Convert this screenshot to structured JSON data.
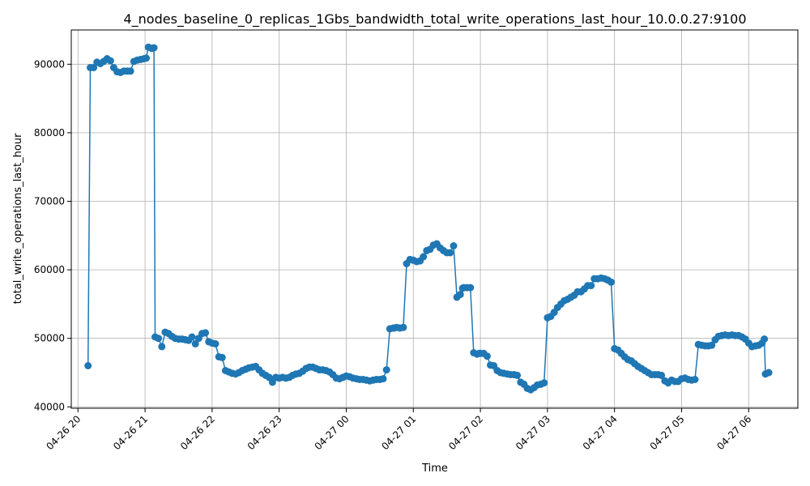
{
  "chart_data": {
    "type": "line",
    "title": "4_nodes_baseline_0_replicas_1Gbs_bandwidth_total_write_operations_last_hour_10.0.0.27:9100",
    "xlabel": "Time",
    "ylabel": "total_write_operations_last_hour",
    "grid": true,
    "x_tick_labels": [
      "04-26 20",
      "04-26 21",
      "04-26 22",
      "04-26 23",
      "04-27 00",
      "04-27 01",
      "04-27 02",
      "04-27 03",
      "04-27 04",
      "04-27 05",
      "04-27 06"
    ],
    "xlim": [
      "04-26 19:54",
      "04-27 06:44"
    ],
    "ylim": [
      39800,
      95000
    ],
    "y_ticks": [
      40000,
      50000,
      60000,
      70000,
      80000,
      90000
    ],
    "series": [
      {
        "color": "#1f77b4",
        "marker": "circle",
        "x": [
          "04-26 20:09",
          "04-26 20:11",
          "04-26 20:14",
          "04-26 20:17",
          "04-26 20:20",
          "04-26 20:23",
          "04-26 20:26",
          "04-26 20:29",
          "04-26 20:32",
          "04-26 20:35",
          "04-26 20:38",
          "04-26 20:41",
          "04-26 20:44",
          "04-26 20:47",
          "04-26 20:50",
          "04-26 20:53",
          "04-26 20:56",
          "04-26 20:59",
          "04-26 21:01",
          "04-26 21:03",
          "04-26 21:06",
          "04-26 21:08",
          "04-26 21:09",
          "04-26 21:12",
          "04-26 21:15",
          "04-26 21:18",
          "04-26 21:21",
          "04-26 21:24",
          "04-26 21:27",
          "04-26 21:30",
          "04-26 21:33",
          "04-26 21:36",
          "04-26 21:39",
          "04-26 21:42",
          "04-26 21:45",
          "04-26 21:48",
          "04-26 21:51",
          "04-26 21:54",
          "04-26 21:57",
          "04-26 22:00",
          "04-26 22:03",
          "04-26 22:06",
          "04-26 22:09",
          "04-26 22:12",
          "04-26 22:15",
          "04-26 22:18",
          "04-26 22:21",
          "04-26 22:24",
          "04-26 22:27",
          "04-26 22:30",
          "04-26 22:33",
          "04-26 22:36",
          "04-26 22:39",
          "04-26 22:42",
          "04-26 22:45",
          "04-26 22:48",
          "04-26 22:51",
          "04-26 22:54",
          "04-26 22:57",
          "04-26 23:00",
          "04-26 23:03",
          "04-26 23:06",
          "04-26 23:09",
          "04-26 23:12",
          "04-26 23:15",
          "04-26 23:18",
          "04-26 23:21",
          "04-26 23:24",
          "04-26 23:27",
          "04-26 23:30",
          "04-26 23:33",
          "04-26 23:36",
          "04-26 23:39",
          "04-26 23:42",
          "04-26 23:45",
          "04-26 23:48",
          "04-26 23:51",
          "04-26 23:54",
          "04-26 23:57",
          "04-27 00:00",
          "04-27 00:03",
          "04-27 00:06",
          "04-27 00:09",
          "04-27 00:12",
          "04-27 00:15",
          "04-27 00:18",
          "04-27 00:21",
          "04-27 00:24",
          "04-27 00:27",
          "04-27 00:30",
          "04-27 00:33",
          "04-27 00:36",
          "04-27 00:39",
          "04-27 00:42",
          "04-27 00:43",
          "04-27 00:45",
          "04-27 00:48",
          "04-27 00:51",
          "04-27 00:54",
          "04-27 00:57",
          "04-27 01:00",
          "04-27 01:03",
          "04-27 01:06",
          "04-27 01:09",
          "04-27 01:12",
          "04-27 01:15",
          "04-27 01:18",
          "04-27 01:21",
          "04-27 01:24",
          "04-27 01:27",
          "04-27 01:30",
          "04-27 01:33",
          "04-27 01:36",
          "04-27 01:39",
          "04-27 01:42",
          "04-27 01:44",
          "04-27 01:45",
          "04-27 01:48",
          "04-27 01:51",
          "04-27 01:54",
          "04-27 01:57",
          "04-27 01:59",
          "04-27 02:00",
          "04-27 02:03",
          "04-27 02:06",
          "04-27 02:09",
          "04-27 02:12",
          "04-27 02:15",
          "04-27 02:18",
          "04-27 02:21",
          "04-27 02:24",
          "04-27 02:27",
          "04-27 02:30",
          "04-27 02:33",
          "04-27 02:36",
          "04-27 02:39",
          "04-27 02:42",
          "04-27 02:45",
          "04-27 02:48",
          "04-27 02:51",
          "04-27 02:54",
          "04-27 02:57",
          "04-27 03:00",
          "04-27 03:03",
          "04-27 03:06",
          "04-27 03:09",
          "04-27 03:12",
          "04-27 03:15",
          "04-27 03:18",
          "04-27 03:21",
          "04-27 03:24",
          "04-27 03:27",
          "04-27 03:30",
          "04-27 03:33",
          "04-27 03:36",
          "04-27 03:39",
          "04-27 03:42",
          "04-27 03:45",
          "04-27 03:48",
          "04-27 03:51",
          "04-27 03:54",
          "04-27 03:57",
          "04-27 04:00",
          "04-27 04:03",
          "04-27 04:06",
          "04-27 04:09",
          "04-27 04:12",
          "04-27 04:15",
          "04-27 04:18",
          "04-27 04:21",
          "04-27 04:24",
          "04-27 04:27",
          "04-27 04:30",
          "04-27 04:33",
          "04-27 04:36",
          "04-27 04:39",
          "04-27 04:42",
          "04-27 04:45",
          "04-27 04:48",
          "04-27 04:51",
          "04-27 04:54",
          "04-27 04:57",
          "04-27 05:00",
          "04-27 05:03",
          "04-27 05:06",
          "04-27 05:09",
          "04-27 05:12",
          "04-27 05:15",
          "04-27 05:18",
          "04-27 05:21",
          "04-27 05:24",
          "04-27 05:27",
          "04-27 05:30",
          "04-27 05:33",
          "04-27 05:36",
          "04-27 05:39",
          "04-27 05:42",
          "04-27 05:45",
          "04-27 05:48",
          "04-27 05:51",
          "04-27 05:54",
          "04-27 05:57",
          "04-27 06:00",
          "04-27 06:03",
          "04-27 06:06",
          "04-27 06:09",
          "04-27 06:12",
          "04-27 06:14",
          "04-27 06:15",
          "04-27 06:18"
        ],
        "y": [
          46000,
          89500,
          89500,
          90300,
          90100,
          90400,
          90800,
          90500,
          89500,
          88900,
          88800,
          89000,
          89000,
          89000,
          90400,
          90600,
          90700,
          90800,
          90900,
          92500,
          92300,
          92400,
          50200,
          50000,
          48800,
          50900,
          50700,
          50300,
          50000,
          49900,
          49900,
          49800,
          49700,
          50200,
          49200,
          50000,
          50700,
          50800,
          49500,
          49300,
          49200,
          47300,
          47200,
          45300,
          45100,
          44900,
          44800,
          45000,
          45300,
          45500,
          45700,
          45800,
          45900,
          45400,
          44900,
          44600,
          44300,
          43600,
          44300,
          44200,
          44300,
          44200,
          44300,
          44600,
          44800,
          44900,
          45200,
          45600,
          45800,
          45800,
          45600,
          45400,
          45400,
          45300,
          45100,
          44700,
          44200,
          44100,
          44300,
          44500,
          44400,
          44200,
          44100,
          44000,
          44000,
          43900,
          43800,
          43900,
          44000,
          44000,
          44100,
          45400,
          51400,
          51500,
          51500,
          51600,
          51500,
          51600,
          60900,
          61500,
          61400,
          61200,
          61300,
          61900,
          62800,
          63000,
          63600,
          63800,
          63200,
          62800,
          62500,
          62500,
          63500,
          56000,
          56400,
          57300,
          57400,
          57400,
          57400,
          47900,
          47700,
          47800,
          47800,
          47800,
          47400,
          46100,
          46000,
          45300,
          45000,
          44900,
          44800,
          44700,
          44700,
          44600,
          43600,
          43300,
          42700,
          42500,
          42800,
          43200,
          43300,
          43500,
          53000,
          53200,
          53800,
          54500,
          55000,
          55500,
          55700,
          56000,
          56300,
          56800,
          56800,
          57200,
          57700,
          57700,
          58700,
          58700,
          58800,
          58700,
          58500,
          58200,
          48500,
          48300,
          47800,
          47300,
          46900,
          46700,
          46300,
          45900,
          45600,
          45300,
          45000,
          44700,
          44700,
          44700,
          44600,
          43800,
          43500,
          43900,
          43700,
          43700,
          44100,
          44200,
          44000,
          43900,
          44000,
          49100,
          49000,
          48900,
          48900,
          49000,
          49800,
          50300,
          50400,
          50500,
          50400,
          50500,
          50400,
          50400,
          50200,
          49900,
          49300,
          48800,
          48900,
          49000,
          49300,
          49900,
          44800,
          45000
        ]
      }
    ]
  }
}
